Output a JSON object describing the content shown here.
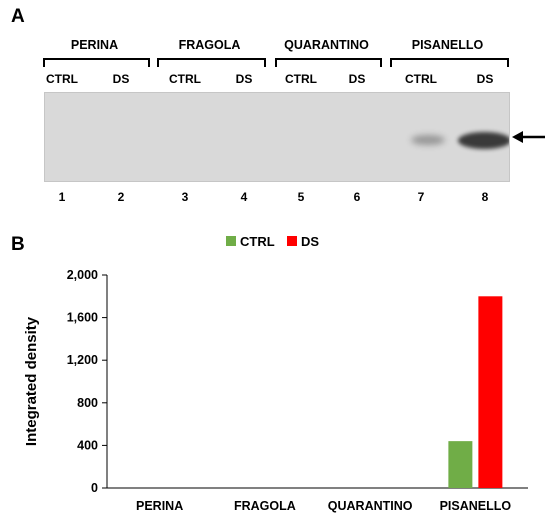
{
  "panel_a": {
    "letter": "A",
    "groups": [
      "PERINA",
      "FRAGOLA",
      "QUARANTINO",
      "PISANELLO"
    ],
    "lane_headers": [
      "CTRL",
      "DS",
      "CTRL",
      "DS",
      "CTRL",
      "DS",
      "CTRL",
      "DS"
    ],
    "lane_numbers": [
      "1",
      "2",
      "3",
      "4",
      "5",
      "6",
      "7",
      "8"
    ],
    "band_intensities": [
      0,
      0,
      0,
      0,
      0,
      0,
      0.25,
      0.9
    ]
  },
  "panel_b": {
    "letter": "B"
  },
  "colors": {
    "CTRL": "#70ad47",
    "DS": "#ff0000",
    "blot_bg": "#d9d9d9",
    "band": "#1a1a1a"
  },
  "chart_data": {
    "type": "bar",
    "categories": [
      "PERINA",
      "FRAGOLA",
      "QUARANTINO",
      "PISANELLO"
    ],
    "series": [
      {
        "name": "CTRL",
        "values": [
          0,
          0,
          0,
          440
        ]
      },
      {
        "name": "DS",
        "values": [
          0,
          0,
          0,
          1800
        ]
      }
    ],
    "ylabel": "Integrated density",
    "xlabel": "",
    "ylim": [
      0,
      2000
    ],
    "yticks": [
      0,
      400,
      800,
      1200,
      1600,
      2000
    ],
    "ytick_labels": [
      "0",
      "400",
      "800",
      "1,200",
      "1,600",
      "2,000"
    ],
    "legend_position": "top-center",
    "grid": false
  }
}
